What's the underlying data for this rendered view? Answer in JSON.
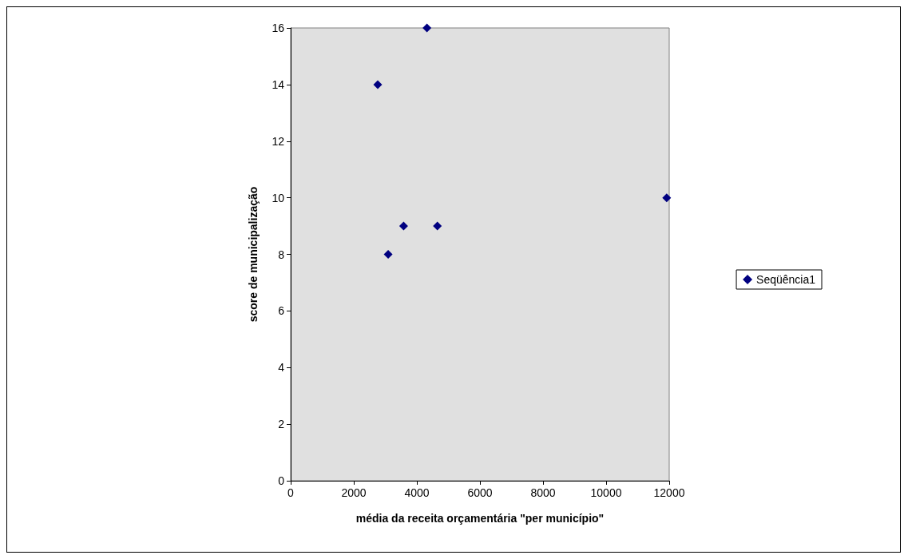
{
  "chart_data": {
    "type": "scatter",
    "xlabel": "média da receita orçamentária \"per município\"",
    "ylabel": "score de municipalização",
    "x": [
      2760,
      4320,
      3580,
      4650,
      3090,
      11920
    ],
    "series": [
      {
        "name": "Seqüência1",
        "color": "#000080",
        "values": [
          14,
          16,
          9,
          9,
          8,
          10
        ]
      }
    ],
    "xlim": [
      0,
      12000
    ],
    "xticks": [
      0,
      2000,
      4000,
      6000,
      8000,
      10000,
      12000
    ],
    "ylim": [
      0,
      16
    ],
    "yticks": [
      0,
      2,
      4,
      6,
      8,
      10,
      12,
      14,
      16
    ],
    "grid": false,
    "legend": "right",
    "marker": "diamond"
  }
}
